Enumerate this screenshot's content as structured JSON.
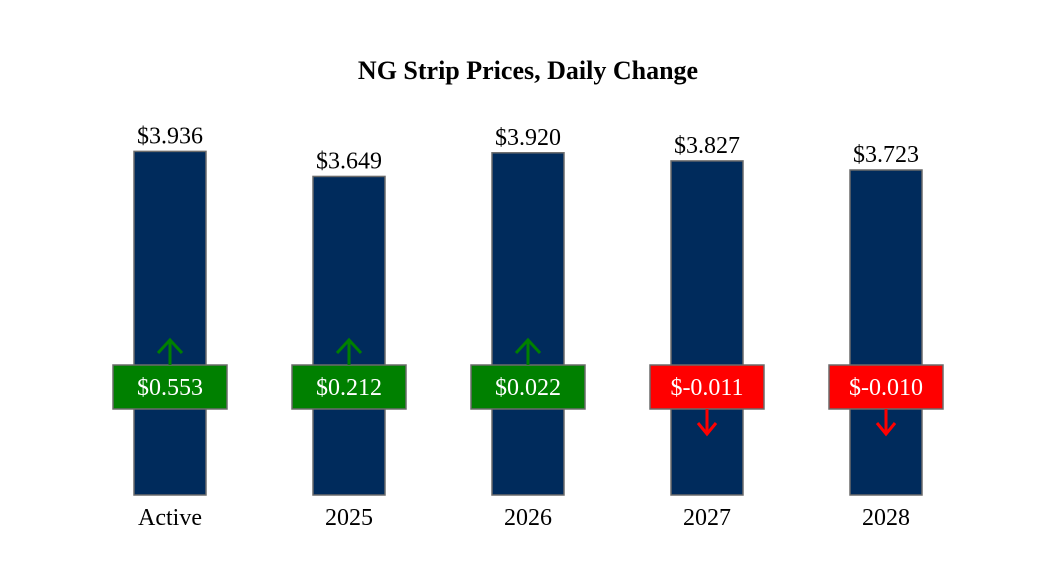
{
  "chart_data": {
    "type": "bar",
    "title": "NG Strip Prices, Daily Change",
    "xlabel": "",
    "ylabel": "",
    "categories": [
      "Active",
      "2025",
      "2026",
      "2027",
      "2028"
    ],
    "values": [
      3.936,
      3.649,
      3.92,
      3.827,
      3.723
    ],
    "value_labels": [
      "$3.936",
      "$3.649",
      "$3.920",
      "$3.827",
      "$3.723"
    ],
    "changes": [
      0.553,
      0.212,
      0.022,
      -0.011,
      -0.01
    ],
    "change_labels": [
      "$0.553",
      "$0.212",
      "$0.022",
      "$-0.011",
      "$-0.010"
    ],
    "ylim": [
      0,
      4.3
    ],
    "grid": false,
    "legend": "none",
    "colors": {
      "bar": "#002b5c",
      "bar_stroke": "#6b6b6b",
      "positive": "#008000",
      "negative": "#ff0000"
    }
  }
}
